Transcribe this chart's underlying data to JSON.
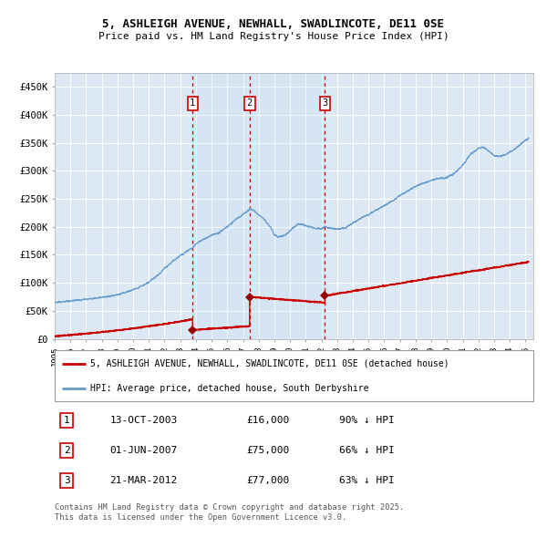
{
  "title_line1": "5, ASHLEIGH AVENUE, NEWHALL, SWADLINCOTE, DE11 0SE",
  "title_line2": "Price paid vs. HM Land Registry's House Price Index (HPI)",
  "legend_red": "5, ASHLEIGH AVENUE, NEWHALL, SWADLINCOTE, DE11 0SE (detached house)",
  "legend_blue": "HPI: Average price, detached house, South Derbyshire",
  "transactions": [
    {
      "num": 1,
      "date": "13-OCT-2003",
      "price": 16000,
      "pct": "90% ↓ HPI",
      "date_x": 2003.79
    },
    {
      "num": 2,
      "date": "01-JUN-2007",
      "price": 75000,
      "pct": "66% ↓ HPI",
      "date_x": 2007.42
    },
    {
      "num": 3,
      "date": "21-MAR-2012",
      "price": 77000,
      "pct": "63% ↓ HPI",
      "date_x": 2012.22
    }
  ],
  "ylabel_ticks": [
    "£0",
    "£50K",
    "£100K",
    "£150K",
    "£200K",
    "£250K",
    "£300K",
    "£350K",
    "£400K",
    "£450K"
  ],
  "ytick_vals": [
    0,
    50000,
    100000,
    150000,
    200000,
    250000,
    300000,
    350000,
    400000,
    450000
  ],
  "xmin": 1995,
  "xmax": 2025.5,
  "ymin": 0,
  "ymax": 475000,
  "bg_color": "#dce9f5",
  "grid_color": "#ffffff",
  "red_line_color": "#cc0000",
  "blue_line_color": "#6699cc",
  "dashed_color": "#cc0000",
  "marker_color": "#990000",
  "footer": "Contains HM Land Registry data © Crown copyright and database right 2025.\nThis data is licensed under the Open Government Licence v3.0."
}
